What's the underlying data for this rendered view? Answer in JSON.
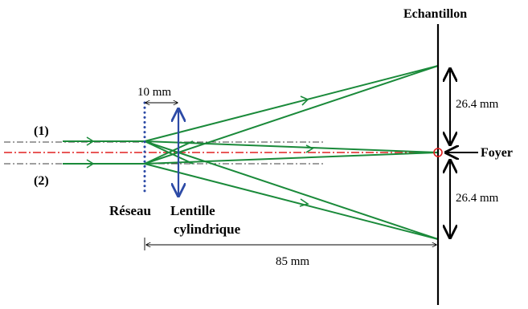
{
  "labels": {
    "sample": "Echantillon",
    "focus": "Foyer",
    "beam1": "(1)",
    "beam2": "(2)",
    "grating": "Réseau",
    "lens_line1": "Lentille",
    "lens_line2": "cylindrique",
    "dim_10": "10 mm",
    "dim_85": "85 mm",
    "dim_top": "26.4 mm",
    "dim_bottom": "26.4 mm"
  },
  "colors": {
    "ray": "#1a8a3a",
    "axis": "#e02020",
    "grating": "#2c4aa6",
    "lens": "#2c4aa6",
    "screen": "#000000",
    "focus": "#e02020",
    "guide": "#000000"
  }
}
